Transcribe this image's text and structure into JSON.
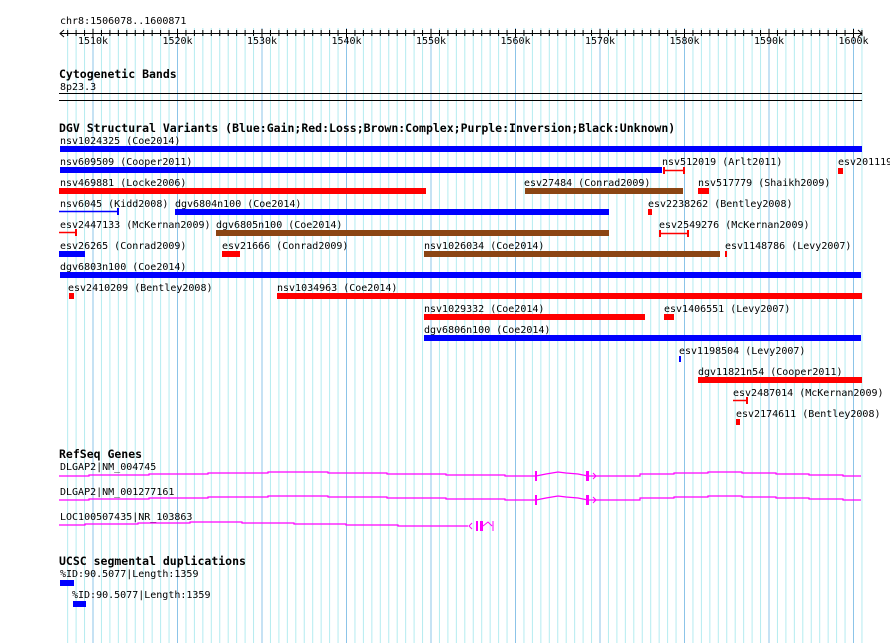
{
  "ruler": {
    "region": "chr8:1506078..1600871",
    "ticks": [
      "1510k",
      "1520k",
      "1530k",
      "1540k",
      "1550k",
      "1560k",
      "1570k",
      "1580k",
      "1590k",
      "1600k"
    ]
  },
  "cytoband": {
    "title": "Cytogenetic Bands",
    "band": "8p23.3"
  },
  "dgv": {
    "title": "DGV Structural Variants (Blue:Gain;Red:Loss;Brown:Complex;Purple:Inversion;Black:Unknown)",
    "colors": {
      "gain": "#0000ff",
      "loss": "#ff0000",
      "complex": "#8b4513"
    },
    "features": [
      "nsv1024325 (Coe2014)",
      "nsv609509 (Cooper2011)",
      "nsv512019 (Arlt2011)",
      "esv201119",
      "nsv469881 (Locke2006)",
      "esv27484 (Conrad2009)",
      "nsv517779 (Shaikh2009)",
      "nsv6045 (Kidd2008)",
      "dgv6804n100 (Coe2014)",
      "esv2238262 (Bentley2008)",
      "esv2447133 (McKernan2009)",
      "dgv6805n100 (Coe2014)",
      "esv2549276 (McKernan2009)",
      "esv26265 (Conrad2009)",
      "esv21666 (Conrad2009)",
      "nsv1026034 (Coe2014)",
      "esv1148786 (Levy2007)",
      "dgv6803n100 (Coe2014)",
      "esv2410209 (Bentley2008)",
      "nsv1034963 (Coe2014)",
      "nsv1029332 (Coe2014)",
      "esv1406551 (Levy2007)",
      "dgv6806n100 (Coe2014)",
      "esv1198504 (Levy2007)",
      "dgv11821n54 (Cooper2011)",
      "esv2487014 (McKernan2009)",
      "esv2174611 (Bentley2008)"
    ]
  },
  "refseq": {
    "title": "RefSeq Genes",
    "color": "#ff00ff",
    "genes": [
      "DLGAP2|NM_004745",
      "DLGAP2|NM_001277161",
      "LOC100507435|NR_103863"
    ]
  },
  "segdup": {
    "title": "UCSC segmental duplications",
    "items": [
      "%ID:90.5077|Length:1359",
      "%ID:90.5077|Length:1359"
    ]
  }
}
